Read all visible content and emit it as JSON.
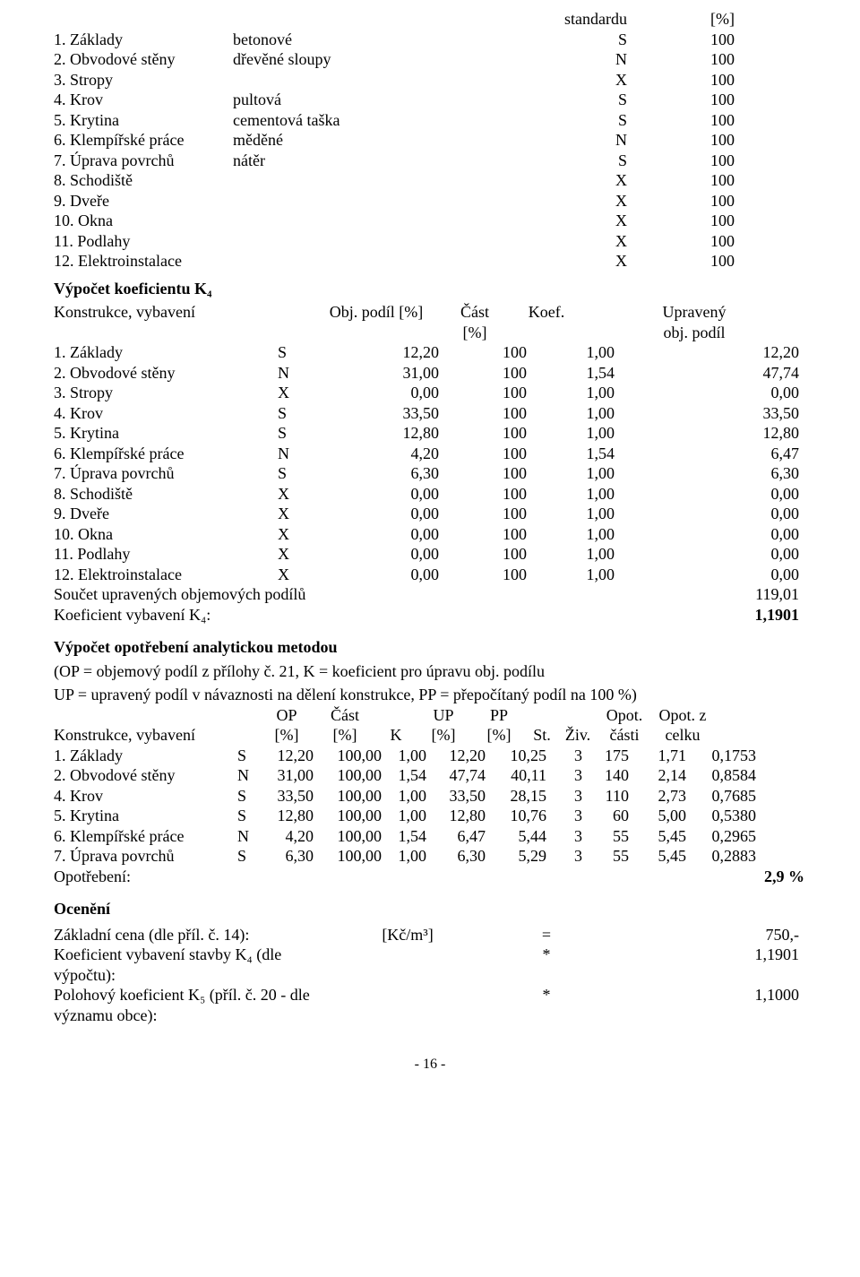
{
  "topHeader": {
    "col1": "standardu",
    "col2": "[%]"
  },
  "specRows": [
    {
      "name": "1. Základy",
      "desc": "betonové",
      "code": "S",
      "val": "100"
    },
    {
      "name": "2. Obvodové stěny",
      "desc": "dřevěné sloupy",
      "code": "N",
      "val": "100"
    },
    {
      "name": "3. Stropy",
      "desc": "",
      "code": "X",
      "val": "100"
    },
    {
      "name": "4. Krov",
      "desc": "pultová",
      "code": "S",
      "val": "100"
    },
    {
      "name": "5. Krytina",
      "desc": "cementová taška",
      "code": "S",
      "val": "100"
    },
    {
      "name": "6. Klempířské práce",
      "desc": "měděné",
      "code": "N",
      "val": "100"
    },
    {
      "name": "7. Úprava povrchů",
      "desc": "nátěr",
      "code": "S",
      "val": "100"
    },
    {
      "name": "8. Schodiště",
      "desc": "",
      "code": "X",
      "val": "100"
    },
    {
      "name": "9. Dveře",
      "desc": "",
      "code": "X",
      "val": "100"
    },
    {
      "name": "10. Okna",
      "desc": "",
      "code": "X",
      "val": "100"
    },
    {
      "name": "11. Podlahy",
      "desc": "",
      "code": "X",
      "val": "100"
    },
    {
      "name": "12. Elektroinstalace",
      "desc": "",
      "code": "X",
      "val": "100"
    }
  ],
  "k4Title": "Výpočet koeficientu K₄",
  "k4Header": {
    "c0": "Konstrukce, vybavení",
    "c2": "Obj. podíl [%]",
    "c3a": "Část",
    "c3b": "[%]",
    "c4": "Koef.",
    "c5a": "Upravený",
    "c5b": "obj. podíl"
  },
  "k4Rows": [
    {
      "name": "1. Základy",
      "code": "S",
      "op": "12,20",
      "part": "100",
      "koef": "1,00",
      "up": "12,20"
    },
    {
      "name": "2. Obvodové stěny",
      "code": "N",
      "op": "31,00",
      "part": "100",
      "koef": "1,54",
      "up": "47,74"
    },
    {
      "name": "3. Stropy",
      "code": "X",
      "op": "0,00",
      "part": "100",
      "koef": "1,00",
      "up": "0,00"
    },
    {
      "name": "4. Krov",
      "code": "S",
      "op": "33,50",
      "part": "100",
      "koef": "1,00",
      "up": "33,50"
    },
    {
      "name": "5. Krytina",
      "code": "S",
      "op": "12,80",
      "part": "100",
      "koef": "1,00",
      "up": "12,80"
    },
    {
      "name": "6. Klempířské práce",
      "code": "N",
      "op": "4,20",
      "part": "100",
      "koef": "1,54",
      "up": "6,47"
    },
    {
      "name": "7. Úprava povrchů",
      "code": "S",
      "op": "6,30",
      "part": "100",
      "koef": "1,00",
      "up": "6,30"
    },
    {
      "name": "8. Schodiště",
      "code": "X",
      "op": "0,00",
      "part": "100",
      "koef": "1,00",
      "up": "0,00"
    },
    {
      "name": "9. Dveře",
      "code": "X",
      "op": "0,00",
      "part": "100",
      "koef": "1,00",
      "up": "0,00"
    },
    {
      "name": "10. Okna",
      "code": "X",
      "op": "0,00",
      "part": "100",
      "koef": "1,00",
      "up": "0,00"
    },
    {
      "name": "11. Podlahy",
      "code": "X",
      "op": "0,00",
      "part": "100",
      "koef": "1,00",
      "up": "0,00"
    },
    {
      "name": "12. Elektroinstalace",
      "code": "X",
      "op": "0,00",
      "part": "100",
      "koef": "1,00",
      "up": "0,00"
    }
  ],
  "k4Sum1": {
    "label": "Součet upravených objemových podílů",
    "val": "119,01"
  },
  "k4Sum2": {
    "label": "Koeficient vybavení K₄:",
    "val": "1,1901"
  },
  "opTitle": "Výpočet opotřebení analytickou metodou",
  "opNote1": "(OP = objemový podíl z přílohy č. 21, K = koeficient pro úpravu obj. podílu",
  "opNote2": "UP = upravený podíl v návaznosti na dělení konstrukce, PP = přepočítaný podíl na 100 %)",
  "opHeader": {
    "c0": "Konstrukce, vybavení",
    "c2a": "OP",
    "c2b": "[%]",
    "c3a": "Část",
    "c3b": "[%]",
    "c4": "K",
    "c5a": "UP",
    "c5b": "[%]",
    "c6a": "PP",
    "c6b": "[%]",
    "c7": "St.",
    "c8": "Živ.",
    "c9a": "Opot.",
    "c9b": "části",
    "c10a": "Opot. z",
    "c10b": "celku"
  },
  "opRows": [
    {
      "name": "1. Základy",
      "code": "S",
      "op": "12,20",
      "part": "100,00",
      "k": "1,00",
      "up": "12,20",
      "pp": "10,25",
      "st": "3",
      "ziv": "175",
      "opc": "1,71",
      "opz": "0,1753"
    },
    {
      "name": "2. Obvodové stěny",
      "code": "N",
      "op": "31,00",
      "part": "100,00",
      "k": "1,54",
      "up": "47,74",
      "pp": "40,11",
      "st": "3",
      "ziv": "140",
      "opc": "2,14",
      "opz": "0,8584"
    },
    {
      "name": "4. Krov",
      "code": "S",
      "op": "33,50",
      "part": "100,00",
      "k": "1,00",
      "up": "33,50",
      "pp": "28,15",
      "st": "3",
      "ziv": "110",
      "opc": "2,73",
      "opz": "0,7685"
    },
    {
      "name": "5. Krytina",
      "code": "S",
      "op": "12,80",
      "part": "100,00",
      "k": "1,00",
      "up": "12,80",
      "pp": "10,76",
      "st": "3",
      "ziv": "60",
      "opc": "5,00",
      "opz": "0,5380"
    },
    {
      "name": "6. Klempířské práce",
      "code": "N",
      "op": "4,20",
      "part": "100,00",
      "k": "1,54",
      "up": "6,47",
      "pp": "5,44",
      "st": "3",
      "ziv": "55",
      "opc": "5,45",
      "opz": "0,2965"
    },
    {
      "name": "7. Úprava povrchů",
      "code": "S",
      "op": "6,30",
      "part": "100,00",
      "k": "1,00",
      "up": "6,30",
      "pp": "5,29",
      "st": "3",
      "ziv": "55",
      "opc": "5,45",
      "opz": "0,2883"
    }
  ],
  "opSum": {
    "label": "Opotřebení:",
    "val": "2,9 %"
  },
  "ocTitle": "Ocenění",
  "ocRows": [
    {
      "label": "Základní cena (dle příl. č. 14):",
      "unit": "[Kč/m³]",
      "sign": "=",
      "val": "750,-"
    },
    {
      "label": "Koeficient vybavení stavby K₄ (dle výpočtu):",
      "unit": "",
      "sign": "*",
      "val": "1,1901"
    },
    {
      "label": "Polohový koeficient K₅ (příl. č. 20 - dle významu obce):",
      "unit": "",
      "sign": "*",
      "val": "1,1000"
    }
  ],
  "pageFoot": "- 16 -"
}
